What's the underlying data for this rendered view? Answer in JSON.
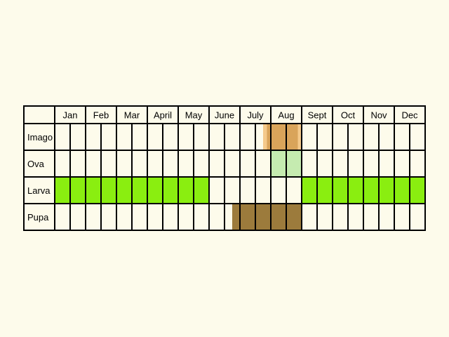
{
  "chart_data": {
    "type": "table",
    "months": [
      "Jan",
      "Feb",
      "Mar",
      "April",
      "May",
      "June",
      "July",
      "Aug",
      "Sept",
      "Oct",
      "Nov",
      "Dec"
    ],
    "half_month_columns": 24,
    "stages": [
      {
        "name": "Imago",
        "periods": [
          {
            "start_half": 13.5,
            "end_half": 16.0,
            "color": "#f4c98a"
          },
          {
            "start_half": 13.75,
            "end_half": 15.75,
            "color": "#d9a45a"
          }
        ]
      },
      {
        "name": "Ova",
        "periods": [
          {
            "start_half": 14.0,
            "end_half": 16.0,
            "color": "#c5ebb0"
          }
        ]
      },
      {
        "name": "Larva",
        "periods": [
          {
            "start_half": 0.0,
            "end_half": 10.0,
            "color": "#8aee10"
          },
          {
            "start_half": 16.0,
            "end_half": 24.0,
            "color": "#8aee10"
          }
        ]
      },
      {
        "name": "Pupa",
        "periods": [
          {
            "start_half": 11.5,
            "end_half": 16.0,
            "color": "#9c7b3c"
          }
        ]
      }
    ]
  }
}
